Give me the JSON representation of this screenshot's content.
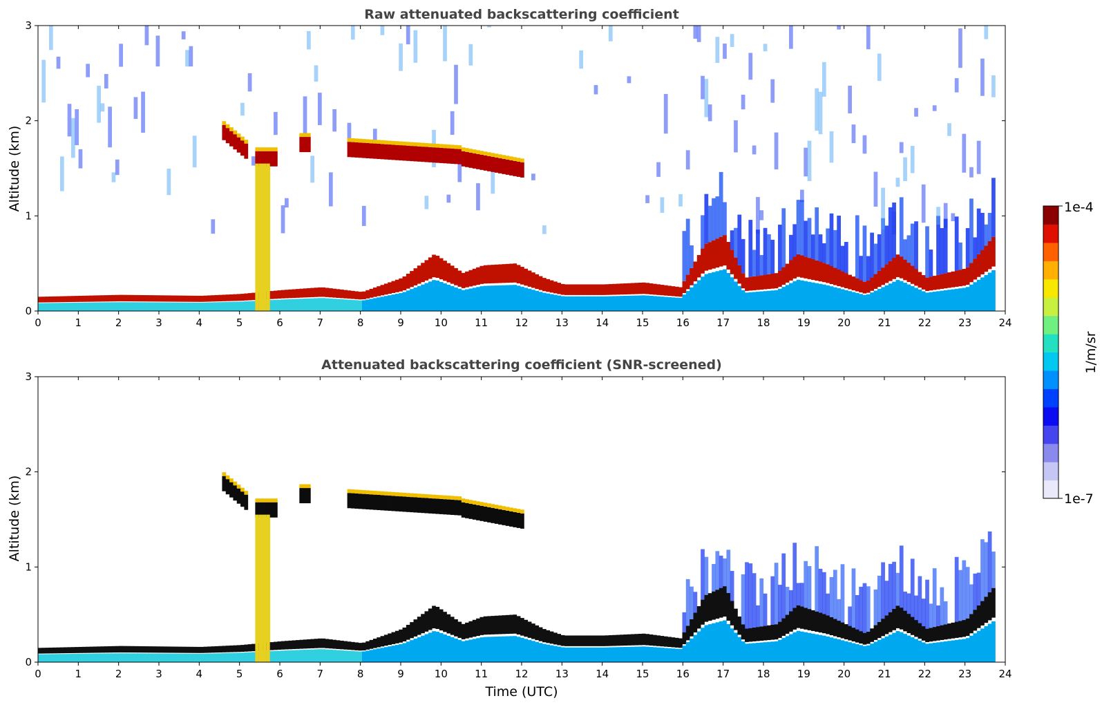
{
  "chart_data": [
    {
      "type": "heatmap",
      "title": "Raw attenuated backscattering coefficient",
      "xlabel": "",
      "ylabel": "Altitude (km)",
      "xlim": [
        0,
        24
      ],
      "ylim": [
        0,
        3
      ],
      "x_ticks": [
        "0",
        "1",
        "2",
        "3",
        "4",
        "5",
        "6",
        "7",
        "8",
        "9",
        "10",
        "11",
        "12",
        "13",
        "14",
        "15",
        "16",
        "17",
        "18",
        "19",
        "20",
        "21",
        "22",
        "23",
        "24"
      ],
      "y_ticks": [
        "0",
        "1",
        "2",
        "3"
      ],
      "data_end_hour": 23.75,
      "boundary_layer_top_km": [
        {
          "t": 0,
          "h": 0.15
        },
        {
          "t": 2,
          "h": 0.17
        },
        {
          "t": 4,
          "h": 0.16
        },
        {
          "t": 5,
          "h": 0.18
        },
        {
          "t": 6,
          "h": 0.22
        },
        {
          "t": 7,
          "h": 0.25
        },
        {
          "t": 8,
          "h": 0.2
        },
        {
          "t": 9,
          "h": 0.35
        },
        {
          "t": 9.8,
          "h": 0.6
        },
        {
          "t": 10.5,
          "h": 0.4
        },
        {
          "t": 11,
          "h": 0.48
        },
        {
          "t": 11.8,
          "h": 0.5
        },
        {
          "t": 12.5,
          "h": 0.35
        },
        {
          "t": 13,
          "h": 0.28
        },
        {
          "t": 14,
          "h": 0.28
        },
        {
          "t": 15,
          "h": 0.3
        },
        {
          "t": 15.9,
          "h": 0.25
        },
        {
          "t": 16.5,
          "h": 0.7
        },
        {
          "t": 17,
          "h": 0.8
        },
        {
          "t": 17.5,
          "h": 0.35
        },
        {
          "t": 18.3,
          "h": 0.4
        },
        {
          "t": 18.8,
          "h": 0.6
        },
        {
          "t": 19.5,
          "h": 0.5
        },
        {
          "t": 20.5,
          "h": 0.3
        },
        {
          "t": 21.3,
          "h": 0.6
        },
        {
          "t": 22,
          "h": 0.35
        },
        {
          "t": 23,
          "h": 0.45
        },
        {
          "t": 23.7,
          "h": 0.8
        }
      ],
      "cloud_layers": [
        {
          "t0": 4.5,
          "t1": 5.2,
          "h0": 1.9,
          "h1": 1.65
        },
        {
          "t0": 5.3,
          "t1": 5.85,
          "h0": 1.6,
          "h1": 1.6
        },
        {
          "t0": 6.4,
          "t1": 6.7,
          "h0": 1.75,
          "h1": 1.75
        },
        {
          "t0": 7.6,
          "t1": 10.5,
          "h0": 1.7,
          "h1": 1.62
        },
        {
          "t0": 10.5,
          "t1": 12.0,
          "h0": 1.6,
          "h1": 1.48
        }
      ],
      "rain_columns": [
        {
          "t0": 5.35,
          "t1": 5.75
        }
      ]
    },
    {
      "type": "heatmap",
      "title": "Attenuated backscattering coefficient (SNR-screened)",
      "xlabel": "Time (UTC)",
      "ylabel": "Altitude (km)",
      "xlim": [
        0,
        24
      ],
      "ylim": [
        0,
        3
      ],
      "x_ticks": [
        "0",
        "1",
        "2",
        "3",
        "4",
        "5",
        "6",
        "7",
        "8",
        "9",
        "10",
        "11",
        "12",
        "13",
        "14",
        "15",
        "16",
        "17",
        "18",
        "19",
        "20",
        "21",
        "22",
        "23",
        "24"
      ],
      "y_ticks": [
        "0",
        "1",
        "2",
        "3"
      ],
      "data_end_hour": 23.75
    }
  ],
  "colorbar": {
    "label": "1/m/sr",
    "max_label": "1e-4",
    "min_label": "1e-7",
    "colors": [
      "#e9e9fb",
      "#c6c6f4",
      "#8a8aee",
      "#4545f0",
      "#0c0cf2",
      "#0040ff",
      "#0090ff",
      "#00c8f0",
      "#22e0c0",
      "#70f080",
      "#c8f040",
      "#f8e800",
      "#ffb000",
      "#ff6000",
      "#e01000",
      "#8b0000"
    ]
  }
}
